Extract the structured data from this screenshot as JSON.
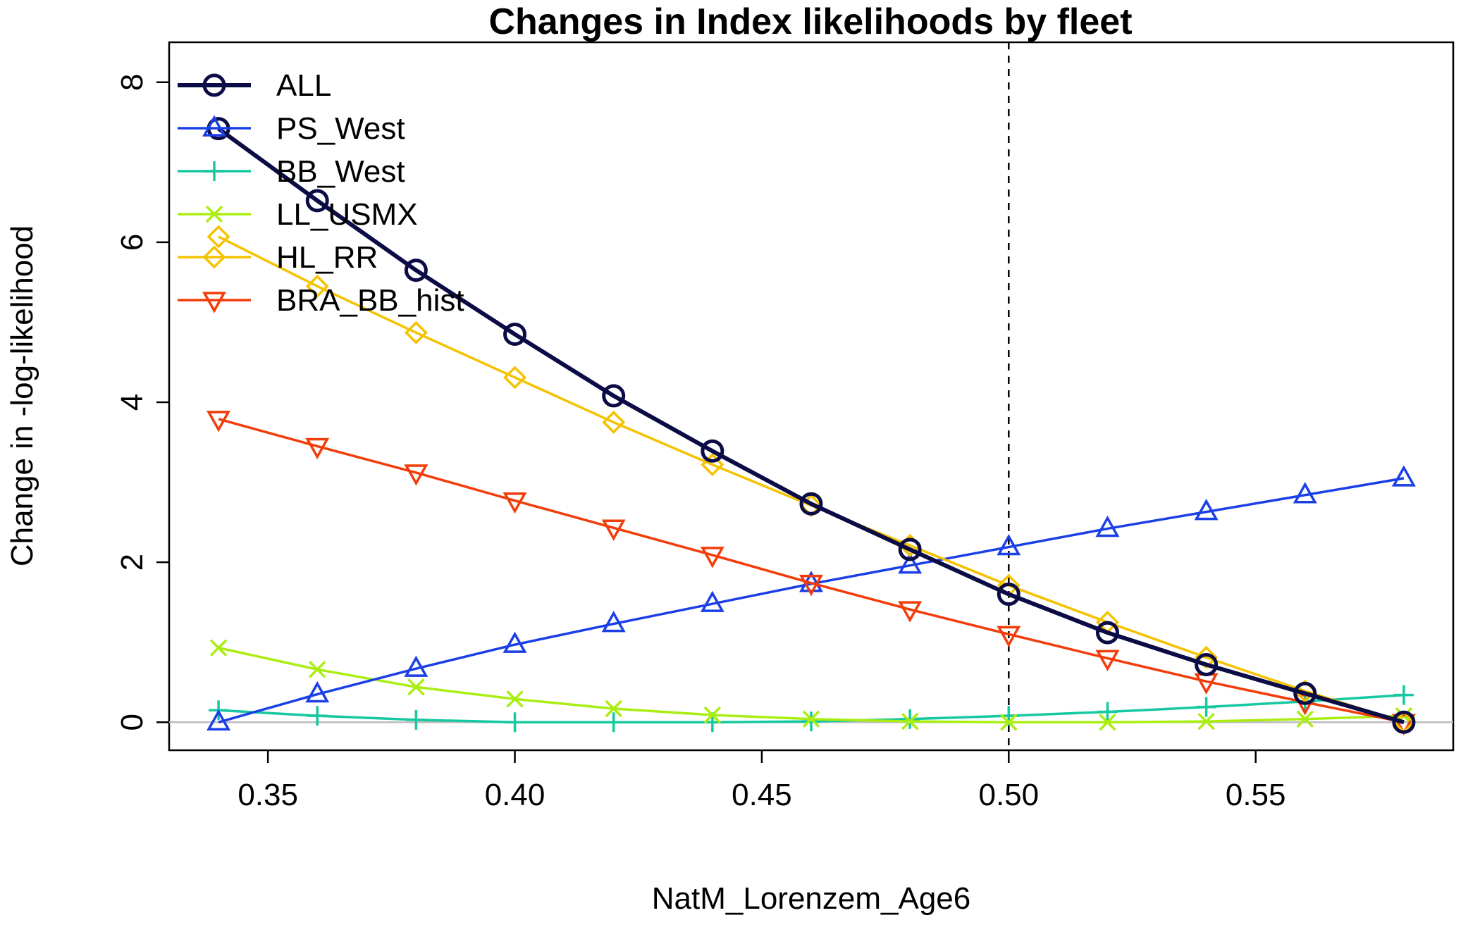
{
  "chart_data": {
    "type": "line",
    "title": "Changes in Index likelihoods by fleet",
    "xlabel": "NatM_Lorenzem_Age6",
    "ylabel": "Change in -log-likelihood",
    "xlim": [
      0.33,
      0.59
    ],
    "ylim": [
      -0.35,
      8.5
    ],
    "x_ticks": [
      0.35,
      0.4,
      0.45,
      0.5,
      0.55
    ],
    "x_tick_labels": [
      "0.35",
      "0.40",
      "0.45",
      "0.50",
      "0.55"
    ],
    "y_ticks": [
      0,
      2,
      4,
      6,
      8
    ],
    "y_tick_labels": [
      "0",
      "2",
      "4",
      "6",
      "8"
    ],
    "reference_vline": 0.5,
    "reference_hline": 0,
    "legend_position": "top-left",
    "x": [
      0.34,
      0.36,
      0.38,
      0.4,
      0.42,
      0.44,
      0.46,
      0.48,
      0.5,
      0.52,
      0.54,
      0.56,
      0.58
    ],
    "series": [
      {
        "name": "ALL",
        "color": "#0b0b45",
        "marker": "circle",
        "width": 6,
        "values": [
          7.42,
          6.52,
          5.65,
          4.85,
          4.08,
          3.39,
          2.73,
          2.16,
          1.6,
          1.12,
          0.72,
          0.36,
          0.0
        ]
      },
      {
        "name": "PS_West",
        "color": "#1a3fe6",
        "marker": "triangle-up",
        "width": 3.5,
        "values": [
          0.0,
          0.35,
          0.67,
          0.97,
          1.23,
          1.48,
          1.73,
          1.96,
          2.19,
          2.42,
          2.63,
          2.84,
          3.05
        ]
      },
      {
        "name": "BB_West",
        "color": "#15c8a0",
        "marker": "plus",
        "width": 3.5,
        "values": [
          0.15,
          0.08,
          0.03,
          0.0,
          0.0,
          0.0,
          0.01,
          0.04,
          0.08,
          0.13,
          0.19,
          0.26,
          0.34
        ]
      },
      {
        "name": "LL_USMX",
        "color": "#aaee11",
        "marker": "x",
        "width": 3.5,
        "values": [
          0.93,
          0.66,
          0.44,
          0.29,
          0.17,
          0.09,
          0.04,
          0.01,
          0.0,
          0.0,
          0.01,
          0.04,
          0.08
        ]
      },
      {
        "name": "HL_RR",
        "color": "#f5c200",
        "marker": "diamond",
        "width": 3.5,
        "values": [
          6.07,
          5.45,
          4.87,
          4.31,
          3.75,
          3.22,
          2.71,
          2.21,
          1.71,
          1.25,
          0.81,
          0.39,
          0.0
        ]
      },
      {
        "name": "BRA_BB_hist",
        "color": "#f23c0a",
        "marker": "triangle-down",
        "width": 3.5,
        "values": [
          3.79,
          3.45,
          3.12,
          2.77,
          2.43,
          2.09,
          1.74,
          1.41,
          1.1,
          0.8,
          0.51,
          0.25,
          0.0
        ]
      }
    ]
  }
}
